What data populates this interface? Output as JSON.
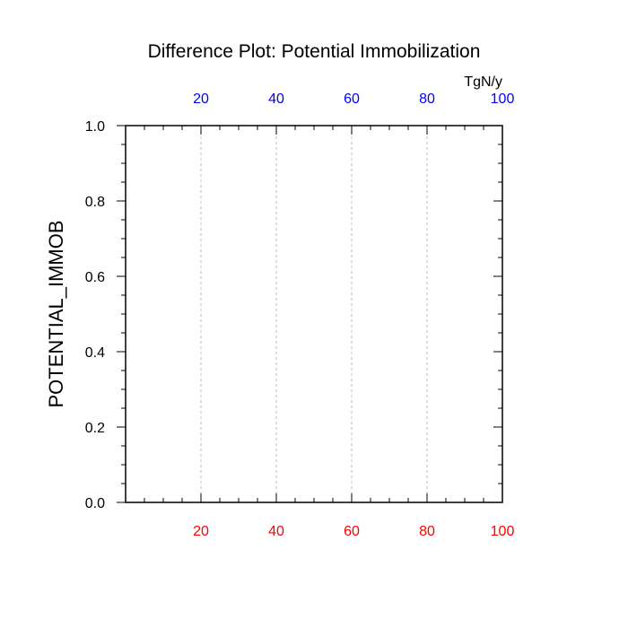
{
  "chart_data": {
    "type": "line",
    "title": "Difference Plot: Potential Immobilization",
    "ylabel": "POTENTIAL_IMMOB",
    "top_axis_unit": "TgN/y",
    "xlim": [
      0,
      100
    ],
    "ylim": [
      0,
      1
    ],
    "x_ticks": [
      20,
      40,
      60,
      80,
      100
    ],
    "y_ticks": [
      0.0,
      0.2,
      0.4,
      0.6,
      0.8,
      1.0
    ],
    "y_tick_labels": [
      "0.0",
      "0.2",
      "0.4",
      "0.6",
      "0.8",
      "1.0"
    ],
    "grid": "vertical dashed at x ticks",
    "series": []
  },
  "colors": {
    "bottom_axis_labels": "#ff0000",
    "top_axis_labels": "#0000ff",
    "axis": "#000000",
    "grid": "#bbbbbb"
  }
}
